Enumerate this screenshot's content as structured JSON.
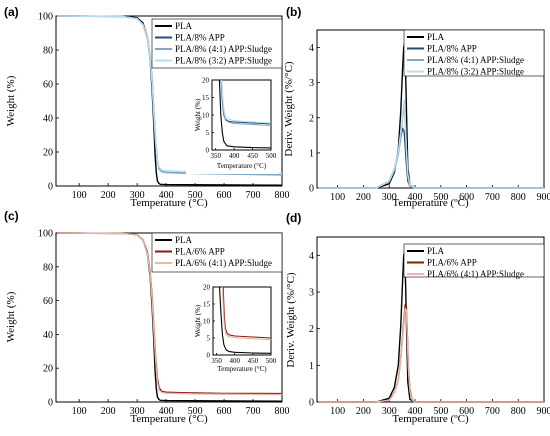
{
  "chart_data": [
    {
      "id": "a",
      "type": "line",
      "panel_label": "(a)",
      "xlabel": "Temperature (°C)",
      "ylabel": "Weight (%)",
      "xlim": [
        20,
        800
      ],
      "ylim": [
        0,
        100
      ],
      "xticks": [
        100,
        200,
        300,
        400,
        500,
        600,
        700,
        800
      ],
      "yticks": [
        0,
        20,
        40,
        60,
        80,
        100
      ],
      "legend": "top-right",
      "series": [
        {
          "name": "PLA",
          "color": "#000000",
          "x": [
            25,
            250,
            300,
            320,
            335,
            345,
            352,
            358,
            362,
            366,
            370,
            375,
            380,
            400,
            800
          ],
          "y": [
            100,
            99.8,
            99,
            96,
            88,
            74,
            55,
            35,
            18,
            8,
            3,
            1.5,
            1,
            0.8,
            0.5
          ]
        },
        {
          "name": "PLA/8% APP",
          "color": "#1f4f7a",
          "x": [
            25,
            250,
            300,
            320,
            335,
            345,
            352,
            358,
            364,
            370,
            376,
            385,
            400,
            450,
            500,
            600,
            800
          ],
          "y": [
            100,
            99.7,
            98.5,
            95,
            88,
            76,
            62,
            44,
            26,
            15,
            10,
            8.5,
            8,
            7.7,
            7.5,
            7.3,
            7
          ]
        },
        {
          "name": "PLA/8% (4:1) APP:Sludge",
          "color": "#7fa7c8",
          "x": [
            25,
            250,
            300,
            320,
            335,
            345,
            352,
            358,
            364,
            370,
            376,
            385,
            400,
            450,
            500,
            600,
            800
          ],
          "y": [
            100,
            99.7,
            98.5,
            95,
            87,
            74,
            59,
            41,
            24,
            14,
            10,
            8.5,
            8,
            7.6,
            7.3,
            7,
            6.5
          ]
        },
        {
          "name": "PLA/8% (3:2) APP:Sludge",
          "color": "#b7dcf0",
          "x": [
            25,
            250,
            300,
            320,
            335,
            345,
            352,
            358,
            364,
            370,
            376,
            385,
            400,
            450,
            500,
            600,
            800
          ],
          "y": [
            100,
            99.7,
            98.5,
            95,
            88,
            75,
            61,
            43,
            26,
            15,
            11,
            9.5,
            9,
            8.6,
            8.3,
            7.8,
            7.3
          ]
        }
      ],
      "inset": {
        "xlabel": "Temperature (°C)",
        "ylabel": "Weight (%)",
        "xlim": [
          340,
          500
        ],
        "ylim": [
          0,
          20
        ],
        "xticks": [
          350,
          400,
          450,
          500
        ],
        "yticks": [
          0,
          5,
          10,
          15,
          20
        ],
        "series": [
          {
            "color": "#000000",
            "x": [
              360,
              364,
              368,
              372,
              380,
              400,
              450,
              500
            ],
            "y": [
              20,
              10,
              5,
              2.5,
              1.2,
              0.9,
              0.7,
              0.6
            ]
          },
          {
            "color": "#1f4f7a",
            "x": [
              365,
              368,
              372,
              376,
              385,
              400,
              450,
              500
            ],
            "y": [
              20,
              14,
              10,
              8.8,
              8.2,
              8,
              7.7,
              7.5
            ]
          },
          {
            "color": "#7fa7c8",
            "x": [
              366,
              369,
              373,
              377,
              386,
              400,
              450,
              500
            ],
            "y": [
              20,
              14,
              10,
              8.5,
              7.9,
              7.6,
              7.3,
              7
            ]
          },
          {
            "color": "#b7dcf0",
            "x": [
              366,
              369,
              373,
              377,
              386,
              400,
              450,
              500
            ],
            "y": [
              20,
              15,
              11,
              9.5,
              8.8,
              8.4,
              8,
              7.7
            ]
          }
        ]
      }
    },
    {
      "id": "b",
      "type": "line",
      "panel_label": "(b)",
      "xlabel": "Temperature (ºC)",
      "ylabel": "Deriv. Weight (%/°C)",
      "xlim": [
        20,
        900
      ],
      "ylim": [
        0,
        4.5
      ],
      "xticks": [
        100,
        200,
        300,
        400,
        500,
        600,
        700,
        800,
        900
      ],
      "yticks": [
        0,
        1,
        2,
        3,
        4
      ],
      "legend": "top-right",
      "series": [
        {
          "name": "PLA",
          "color": "#000000",
          "x": [
            25,
            250,
            300,
            320,
            335,
            345,
            352,
            356,
            360,
            364,
            368,
            372,
            380,
            400,
            900
          ],
          "y": [
            0,
            0,
            0.12,
            0.45,
            1.1,
            2.2,
            3.4,
            4.0,
            4.15,
            3.2,
            1.8,
            0.6,
            0.08,
            0,
            0
          ]
        },
        {
          "name": "PLA/8% APP",
          "color": "#1f4f7a",
          "x": [
            25,
            250,
            300,
            320,
            335,
            345,
            352,
            358,
            362,
            366,
            372,
            380,
            400,
            900
          ],
          "y": [
            0,
            0,
            0.2,
            0.55,
            1.0,
            1.45,
            1.7,
            1.6,
            1.2,
            0.7,
            0.2,
            0.05,
            0,
            0
          ]
        },
        {
          "name": "PLA/8% (4:1) APP:Sludge",
          "color": "#7fa7c8",
          "x": [
            25,
            250,
            300,
            320,
            335,
            345,
            352,
            358,
            362,
            366,
            372,
            380,
            400,
            900
          ],
          "y": [
            0,
            0,
            0.18,
            0.5,
            0.95,
            1.5,
            2.0,
            2.4,
            1.9,
            1.1,
            0.35,
            0.06,
            0,
            0
          ]
        },
        {
          "name": "PLA/8% (3:2) APP:Sludge",
          "color": "#b7dcf0",
          "x": [
            25,
            250,
            300,
            320,
            335,
            345,
            352,
            358,
            362,
            366,
            372,
            380,
            400,
            900
          ],
          "y": [
            0,
            0,
            0.2,
            0.55,
            1.05,
            1.6,
            2.1,
            2.5,
            2.0,
            1.2,
            0.4,
            0.07,
            0,
            0
          ]
        }
      ]
    },
    {
      "id": "c",
      "type": "line",
      "panel_label": "(c)",
      "xlabel": "Temperature (°C)",
      "ylabel": "Weight (%)",
      "xlim": [
        20,
        800
      ],
      "ylim": [
        0,
        100
      ],
      "xticks": [
        100,
        200,
        300,
        400,
        500,
        600,
        700,
        800
      ],
      "yticks": [
        0,
        20,
        40,
        60,
        80,
        100
      ],
      "legend": "top-right",
      "series": [
        {
          "name": "PLA",
          "color": "#000000",
          "x": [
            25,
            250,
            300,
            320,
            335,
            345,
            352,
            358,
            362,
            366,
            370,
            375,
            380,
            400,
            800
          ],
          "y": [
            100,
            99.8,
            99,
            96,
            88,
            74,
            55,
            35,
            18,
            8,
            3,
            1.5,
            1,
            0.8,
            0.5
          ]
        },
        {
          "name": "PLA/6% APP",
          "color": "#8b1a10",
          "x": [
            25,
            250,
            300,
            320,
            335,
            345,
            352,
            358,
            364,
            370,
            376,
            385,
            400,
            450,
            500,
            600,
            800
          ],
          "y": [
            100,
            99.7,
            99,
            96,
            89,
            77,
            62,
            44,
            26,
            14,
            8.5,
            6.2,
            5.8,
            5.5,
            5.3,
            5.1,
            5
          ]
        },
        {
          "name": "PLA/6% (4:1) APP:Sludge",
          "color": "#e8b7a8",
          "x": [
            25,
            250,
            300,
            320,
            335,
            345,
            352,
            358,
            364,
            370,
            376,
            385,
            400,
            450,
            500,
            600,
            800
          ],
          "y": [
            100,
            99.7,
            99,
            96,
            88,
            76,
            60,
            42,
            24,
            12,
            7,
            5.6,
            5.2,
            5,
            4.8,
            4.6,
            4.4
          ]
        }
      ],
      "inset": {
        "xlabel": "Temperature (°C)",
        "ylabel": "Weight (%)",
        "xlim": [
          340,
          500
        ],
        "ylim": [
          0,
          20
        ],
        "xticks": [
          350,
          400,
          450,
          500
        ],
        "yticks": [
          0,
          5,
          10,
          15,
          20
        ],
        "series": [
          {
            "color": "#000000",
            "x": [
              358,
              362,
              366,
              370,
              376,
              385,
              400,
              450,
              500
            ],
            "y": [
              20,
              12,
              6,
              3,
              1.5,
              1,
              0.8,
              0.6,
              0.5
            ]
          },
          {
            "color": "#8b1a10",
            "x": [
              368,
              371,
              374,
              378,
              385,
              400,
              450,
              500
            ],
            "y": [
              20,
              12,
              8,
              6.5,
              5.9,
              5.6,
              5.3,
              5
            ]
          },
          {
            "color": "#e8b7a8",
            "x": [
              366,
              369,
              372,
              376,
              383,
              400,
              450,
              500
            ],
            "y": [
              20,
              12,
              8,
              6,
              5.4,
              5.1,
              4.8,
              4.5
            ]
          }
        ]
      }
    },
    {
      "id": "d",
      "type": "line",
      "panel_label": "(d)",
      "xlabel": "Temperature (ºC)",
      "ylabel": "Deriv. Weight (%/°C)",
      "xlim": [
        20,
        900
      ],
      "ylim": [
        0,
        4.5
      ],
      "xticks": [
        100,
        200,
        300,
        400,
        500,
        600,
        700,
        800,
        900
      ],
      "yticks": [
        0,
        1,
        2,
        3,
        4
      ],
      "legend": "top-right",
      "series": [
        {
          "name": "PLA",
          "color": "#000000",
          "x": [
            25,
            250,
            300,
            320,
            335,
            345,
            352,
            356,
            360,
            364,
            368,
            372,
            380,
            400,
            900
          ],
          "y": [
            0,
            0,
            0.1,
            0.4,
            1.0,
            2.1,
            3.3,
            4.0,
            4.1,
            3.1,
            1.7,
            0.55,
            0.07,
            0,
            0
          ]
        },
        {
          "name": "PLA/6% APP",
          "color": "#8b1a10",
          "x": [
            25,
            250,
            300,
            320,
            335,
            345,
            355,
            362,
            366,
            370,
            374,
            380,
            390,
            400,
            900
          ],
          "y": [
            0,
            0,
            0.05,
            0.25,
            0.6,
            1.2,
            2.1,
            2.65,
            2.6,
            1.9,
            1.0,
            0.35,
            0.05,
            0,
            0
          ]
        },
        {
          "name": "PLA/6% (4:1) APP:Sludge",
          "color": "#e8b7a8",
          "x": [
            25,
            250,
            300,
            320,
            335,
            345,
            355,
            362,
            366,
            370,
            374,
            380,
            390,
            400,
            900
          ],
          "y": [
            0,
            0,
            0.05,
            0.25,
            0.6,
            1.2,
            2.0,
            2.55,
            2.5,
            1.8,
            0.95,
            0.3,
            0.05,
            0,
            0
          ]
        }
      ]
    }
  ]
}
